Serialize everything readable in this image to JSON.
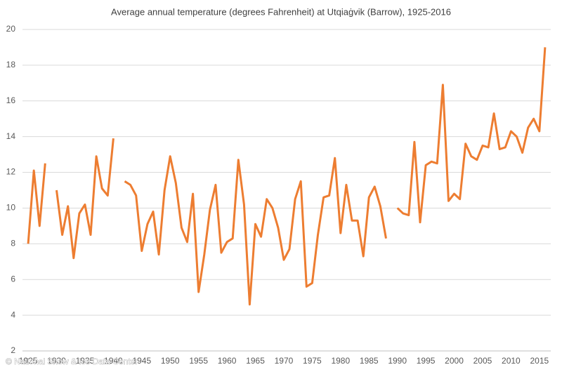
{
  "chart_data": {
    "type": "line",
    "title": "Average annual temperature (degrees Fahrenheit) at Utqiaġvik (Barrow), 1925-2016",
    "credit": "© National Snow & Ice Data Center",
    "x": [
      1925,
      1926,
      1927,
      1928,
      1929,
      1930,
      1931,
      1932,
      1933,
      1934,
      1935,
      1936,
      1937,
      1938,
      1939,
      1940,
      1941,
      1942,
      1943,
      1944,
      1945,
      1946,
      1947,
      1948,
      1949,
      1950,
      1951,
      1952,
      1953,
      1954,
      1955,
      1956,
      1957,
      1958,
      1959,
      1960,
      1961,
      1962,
      1963,
      1964,
      1965,
      1966,
      1967,
      1968,
      1969,
      1970,
      1971,
      1972,
      1973,
      1974,
      1975,
      1976,
      1977,
      1978,
      1979,
      1980,
      1981,
      1982,
      1983,
      1984,
      1985,
      1986,
      1987,
      1988,
      1989,
      1990,
      1991,
      1992,
      1993,
      1994,
      1995,
      1996,
      1997,
      1998,
      1999,
      2000,
      2001,
      2002,
      2003,
      2004,
      2005,
      2006,
      2007,
      2008,
      2009,
      2010,
      2011,
      2012,
      2013,
      2014,
      2015,
      2016
    ],
    "series": [
      {
        "name": "Average annual temperature",
        "color": "#ed7d31",
        "values": [
          8.0,
          12.1,
          9.0,
          12.5,
          null,
          11.0,
          8.5,
          10.1,
          7.2,
          9.7,
          10.2,
          8.5,
          12.9,
          11.1,
          10.7,
          13.9,
          null,
          11.5,
          11.3,
          10.7,
          7.6,
          9.1,
          9.8,
          7.4,
          11.0,
          12.9,
          11.4,
          8.9,
          8.1,
          10.8,
          5.3,
          7.4,
          9.9,
          11.3,
          7.5,
          8.1,
          8.3,
          12.7,
          10.2,
          4.6,
          9.1,
          8.4,
          10.5,
          10.0,
          8.9,
          7.1,
          7.7,
          10.5,
          11.5,
          5.6,
          5.8,
          8.5,
          10.6,
          10.7,
          12.8,
          8.6,
          11.3,
          9.3,
          9.3,
          7.3,
          10.6,
          11.2,
          10.1,
          8.3,
          null,
          10.0,
          9.7,
          9.6,
          13.7,
          9.2,
          12.4,
          12.6,
          12.5,
          16.9,
          10.4,
          10.8,
          10.5,
          13.6,
          12.9,
          12.7,
          13.5,
          13.4,
          15.3,
          13.3,
          13.4,
          14.3,
          14.0,
          13.1,
          14.5,
          15.0,
          14.3,
          19.0
        ]
      }
    ],
    "xlim": [
      1924,
      2017
    ],
    "xticks": [
      1925,
      1930,
      1935,
      1940,
      1945,
      1950,
      1955,
      1960,
      1965,
      1970,
      1975,
      1980,
      1985,
      1990,
      1995,
      2000,
      2005,
      2010,
      2015
    ],
    "ylim": [
      2,
      20
    ],
    "yticks": [
      2,
      4,
      6,
      8,
      10,
      12,
      14,
      16,
      18,
      20
    ],
    "grid": true
  }
}
